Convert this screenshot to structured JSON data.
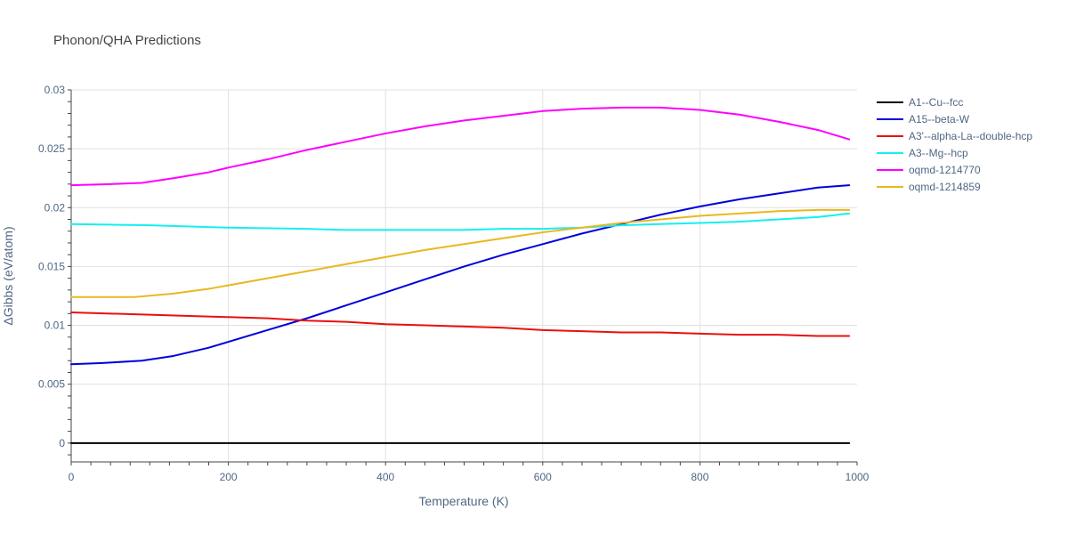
{
  "chart_data": {
    "type": "line",
    "title": "Phonon/QHA Predictions",
    "xlabel": "Temperature (K)",
    "ylabel": "ΔGibbs (eV/atom)",
    "xlim": [
      0,
      1000
    ],
    "ylim": [
      -0.0016,
      0.03
    ],
    "xticks": [
      0,
      200,
      400,
      600,
      800,
      1000
    ],
    "xtick_labels": [
      "0",
      "200",
      "400",
      "600",
      "800",
      "1000"
    ],
    "yticks": [
      0,
      0.005,
      0.01,
      0.015,
      0.02,
      0.025,
      0.03
    ],
    "ytick_labels": [
      "0",
      "0.005",
      "0.01",
      "0.015",
      "0.02",
      "0.025",
      "0.03"
    ],
    "grid": true,
    "legend_position": "right",
    "series": [
      {
        "name": "A1--Cu--fcc",
        "color": "#000000",
        "x": [
          0,
          100,
          200,
          300,
          400,
          500,
          600,
          700,
          800,
          900,
          990
        ],
        "y": [
          0,
          0,
          0,
          0,
          0,
          0,
          0,
          0,
          0,
          0,
          0
        ]
      },
      {
        "name": "A15--beta-W",
        "color": "#0000dd",
        "x": [
          0,
          40,
          90,
          130,
          175,
          200,
          250,
          300,
          350,
          400,
          450,
          500,
          550,
          600,
          650,
          700,
          750,
          800,
          850,
          900,
          950,
          990
        ],
        "y": [
          0.0067,
          0.0068,
          0.007,
          0.0074,
          0.0081,
          0.0086,
          0.0096,
          0.0106,
          0.0117,
          0.0128,
          0.0139,
          0.015,
          0.016,
          0.0169,
          0.0178,
          0.0186,
          0.0194,
          0.0201,
          0.0207,
          0.0212,
          0.0217,
          0.0219
        ]
      },
      {
        "name": "A3'--alpha-La--double-hcp",
        "color": "#e81010",
        "x": [
          0,
          50,
          100,
          150,
          200,
          250,
          300,
          350,
          400,
          450,
          500,
          550,
          600,
          650,
          700,
          750,
          800,
          850,
          900,
          950,
          990
        ],
        "y": [
          0.0111,
          0.011,
          0.0109,
          0.0108,
          0.0107,
          0.0106,
          0.0104,
          0.0103,
          0.0101,
          0.01,
          0.0099,
          0.0098,
          0.0096,
          0.0095,
          0.0094,
          0.0094,
          0.0093,
          0.0092,
          0.0092,
          0.0091,
          0.0091
        ]
      },
      {
        "name": "A3--Mg--hcp",
        "color": "#14f0f0",
        "x": [
          0,
          100,
          200,
          300,
          350,
          400,
          450,
          500,
          550,
          600,
          650,
          700,
          750,
          800,
          850,
          900,
          950,
          990
        ],
        "y": [
          0.0186,
          0.0185,
          0.0183,
          0.0182,
          0.0181,
          0.0181,
          0.0181,
          0.0181,
          0.0182,
          0.0182,
          0.0183,
          0.0185,
          0.0186,
          0.0187,
          0.0188,
          0.019,
          0.0192,
          0.0195
        ]
      },
      {
        "name": "oqmd-1214770",
        "color": "#ff00ff",
        "x": [
          0,
          50,
          90,
          130,
          175,
          200,
          250,
          300,
          350,
          400,
          450,
          500,
          550,
          600,
          650,
          700,
          730,
          750,
          800,
          850,
          900,
          950,
          990
        ],
        "y": [
          0.0219,
          0.022,
          0.0221,
          0.0225,
          0.023,
          0.0234,
          0.0241,
          0.0249,
          0.0256,
          0.0263,
          0.0269,
          0.0274,
          0.0278,
          0.0282,
          0.0284,
          0.0285,
          0.0285,
          0.0285,
          0.0283,
          0.0279,
          0.0273,
          0.0266,
          0.0258
        ]
      },
      {
        "name": "oqmd-1214859",
        "color": "#e8b820",
        "x": [
          0,
          40,
          80,
          130,
          175,
          200,
          250,
          300,
          350,
          400,
          450,
          500,
          550,
          600,
          650,
          700,
          750,
          800,
          850,
          900,
          950,
          990
        ],
        "y": [
          0.0124,
          0.0124,
          0.0124,
          0.0127,
          0.0131,
          0.0134,
          0.014,
          0.0146,
          0.0152,
          0.0158,
          0.0164,
          0.0169,
          0.0174,
          0.0179,
          0.0183,
          0.0187,
          0.019,
          0.0193,
          0.0195,
          0.0197,
          0.0198,
          0.0198
        ]
      }
    ]
  }
}
